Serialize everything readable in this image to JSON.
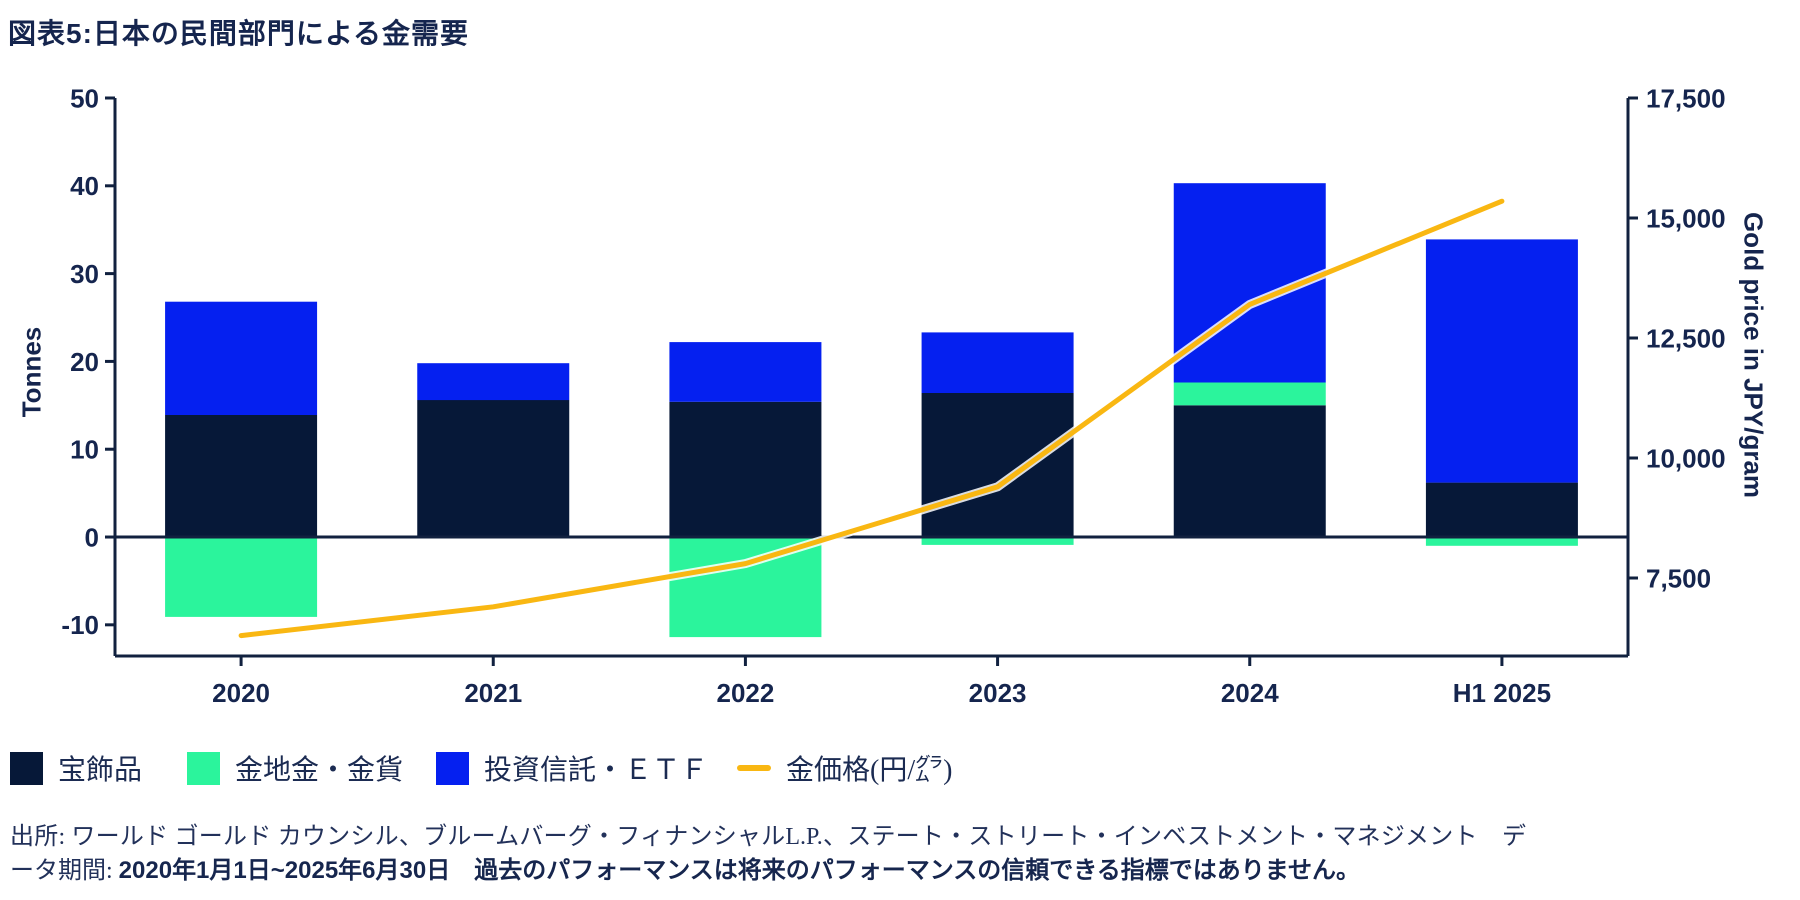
{
  "title": "図表5:日本の民間部門による金需要",
  "colors": {
    "navy": "#061838",
    "green": "#2BF49C",
    "blue": "#0520F0",
    "gold": "#F9B712",
    "text_navy": "#15254E",
    "axis": "#11213F"
  },
  "chart_data": {
    "type": "bar",
    "subtype": "stacked-bars-with-line",
    "categories": [
      "2020",
      "2021",
      "2022",
      "2023",
      "2024",
      "H1 2025"
    ],
    "series": [
      {
        "name": "宝飾品",
        "type": "bar",
        "color": "navy",
        "values": [
          13.9,
          15.6,
          15.4,
          16.4,
          15.0,
          6.2
        ]
      },
      {
        "name": "金地金・金貨",
        "type": "bar",
        "color": "green",
        "values": [
          -9.1,
          0.0,
          -11.4,
          -0.9,
          2.6,
          -1.0
        ]
      },
      {
        "name": "投資信託・ETF",
        "type": "bar",
        "color": "blue",
        "values": [
          12.9,
          4.2,
          6.8,
          6.9,
          22.7,
          27.7
        ]
      },
      {
        "name": "金価格(円/㌘)",
        "type": "line",
        "color": "gold",
        "axis": "right",
        "values": [
          6300,
          6900,
          7800,
          9400,
          13200,
          15350
        ]
      }
    ],
    "left_axis": {
      "label": "Tonnes",
      "min": -13.55,
      "max": 50,
      "ticks": [
        50,
        40,
        30,
        20,
        10,
        0,
        -10
      ]
    },
    "right_axis": {
      "label": "Gold price in JPY/gram",
      "min": 5875,
      "max": 17500,
      "ticks": [
        17500,
        15000,
        12500,
        10000,
        7500
      ]
    },
    "grid": false,
    "legend_position": "bottom"
  },
  "legend": {
    "items": [
      {
        "label": "宝飾品",
        "swatch": "navy",
        "shape": "square"
      },
      {
        "label": "金地金・金貨",
        "swatch": "green",
        "shape": "square"
      },
      {
        "label": "投資信託・ＥＴＦ",
        "swatch": "blue",
        "shape": "square"
      },
      {
        "label": "金価格(円/㌘)",
        "swatch": "gold",
        "shape": "line"
      }
    ]
  },
  "footer": {
    "segments": [
      {
        "text": "出所:  ワールド ゴールド カウンシル、ブルームバーグ・フィナンシャルL.P.、ステート・ストリート・インベストメント・マネジメント　データ期間: ",
        "bold": false
      },
      {
        "text": "2020年1月1日~2025年6月30日",
        "bold": true
      },
      {
        "text": "　",
        "bold": false
      },
      {
        "text": "過去のパフォーマンスは将来のパフォーマンスの信頼できる指標ではありません。",
        "bold": true
      }
    ]
  }
}
